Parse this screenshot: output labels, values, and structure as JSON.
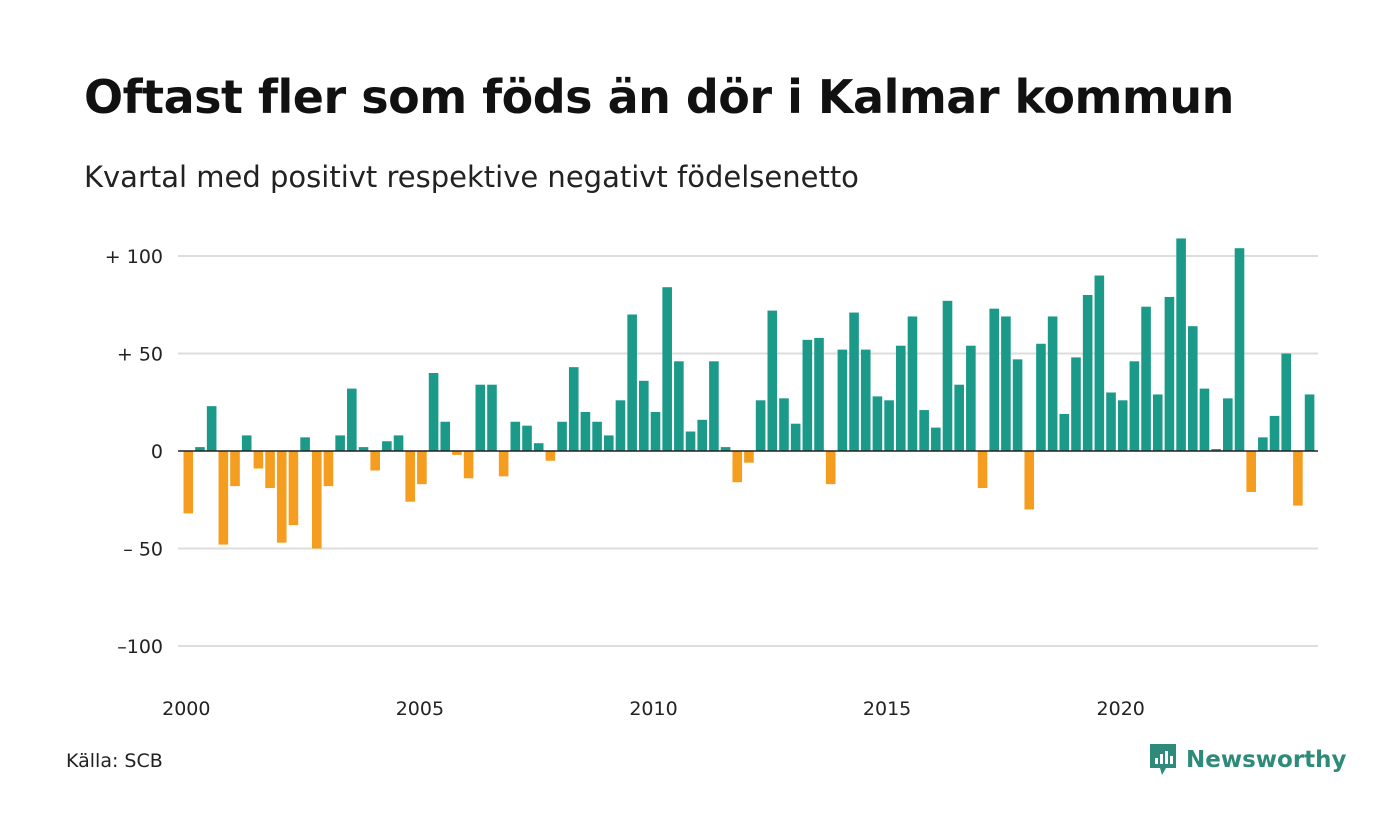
{
  "title": "Oftast fler som föds än dör i Kalmar kommun",
  "subtitle": "Kvartal med positivt respektive negativt födelsenetto",
  "source": "Källa: SCB",
  "brand": "Newsworthy",
  "colors": {
    "positive": "#1b9a8a",
    "negative": "#f59d1f",
    "grid": "#dddddd",
    "axis": "#222222",
    "brand": "#2e8b7a"
  },
  "chart_data": {
    "type": "bar",
    "x_start": "2000 Q1",
    "x_ticks": [
      {
        "year": 2000,
        "label": "2000"
      },
      {
        "year": 2005,
        "label": "2005"
      },
      {
        "year": 2010,
        "label": "2010"
      },
      {
        "year": 2015,
        "label": "2015"
      },
      {
        "year": 2020,
        "label": "2020"
      }
    ],
    "y_ticks": [
      {
        "value": 100,
        "label": "+ 100"
      },
      {
        "value": 50,
        "label": "+  50"
      },
      {
        "value": 0,
        "label": "0"
      },
      {
        "value": -50,
        "label": "– 50"
      },
      {
        "value": -100,
        "label": "–100"
      }
    ],
    "ylim": [
      -100,
      110
    ],
    "grid": true,
    "values": [
      -32,
      2,
      23,
      -48,
      -18,
      8,
      -9,
      -19,
      -47,
      -38,
      7,
      -50,
      -18,
      8,
      32,
      2,
      -10,
      5,
      8,
      -26,
      -17,
      40,
      15,
      -2,
      -14,
      34,
      34,
      -13,
      15,
      13,
      4,
      -5,
      15,
      43,
      20,
      15,
      8,
      26,
      70,
      36,
      20,
      84,
      46,
      10,
      16,
      46,
      2,
      -16,
      -6,
      26,
      72,
      27,
      14,
      57,
      58,
      -17,
      52,
      71,
      52,
      28,
      26,
      54,
      69,
      21,
      12,
      77,
      34,
      54,
      -19,
      73,
      69,
      47,
      -30,
      55,
      69,
      19,
      48,
      80,
      90,
      30,
      26,
      46,
      74,
      29,
      79,
      109,
      64,
      32,
      1,
      27,
      104,
      -21,
      7,
      18,
      50,
      -28,
      29
    ]
  }
}
